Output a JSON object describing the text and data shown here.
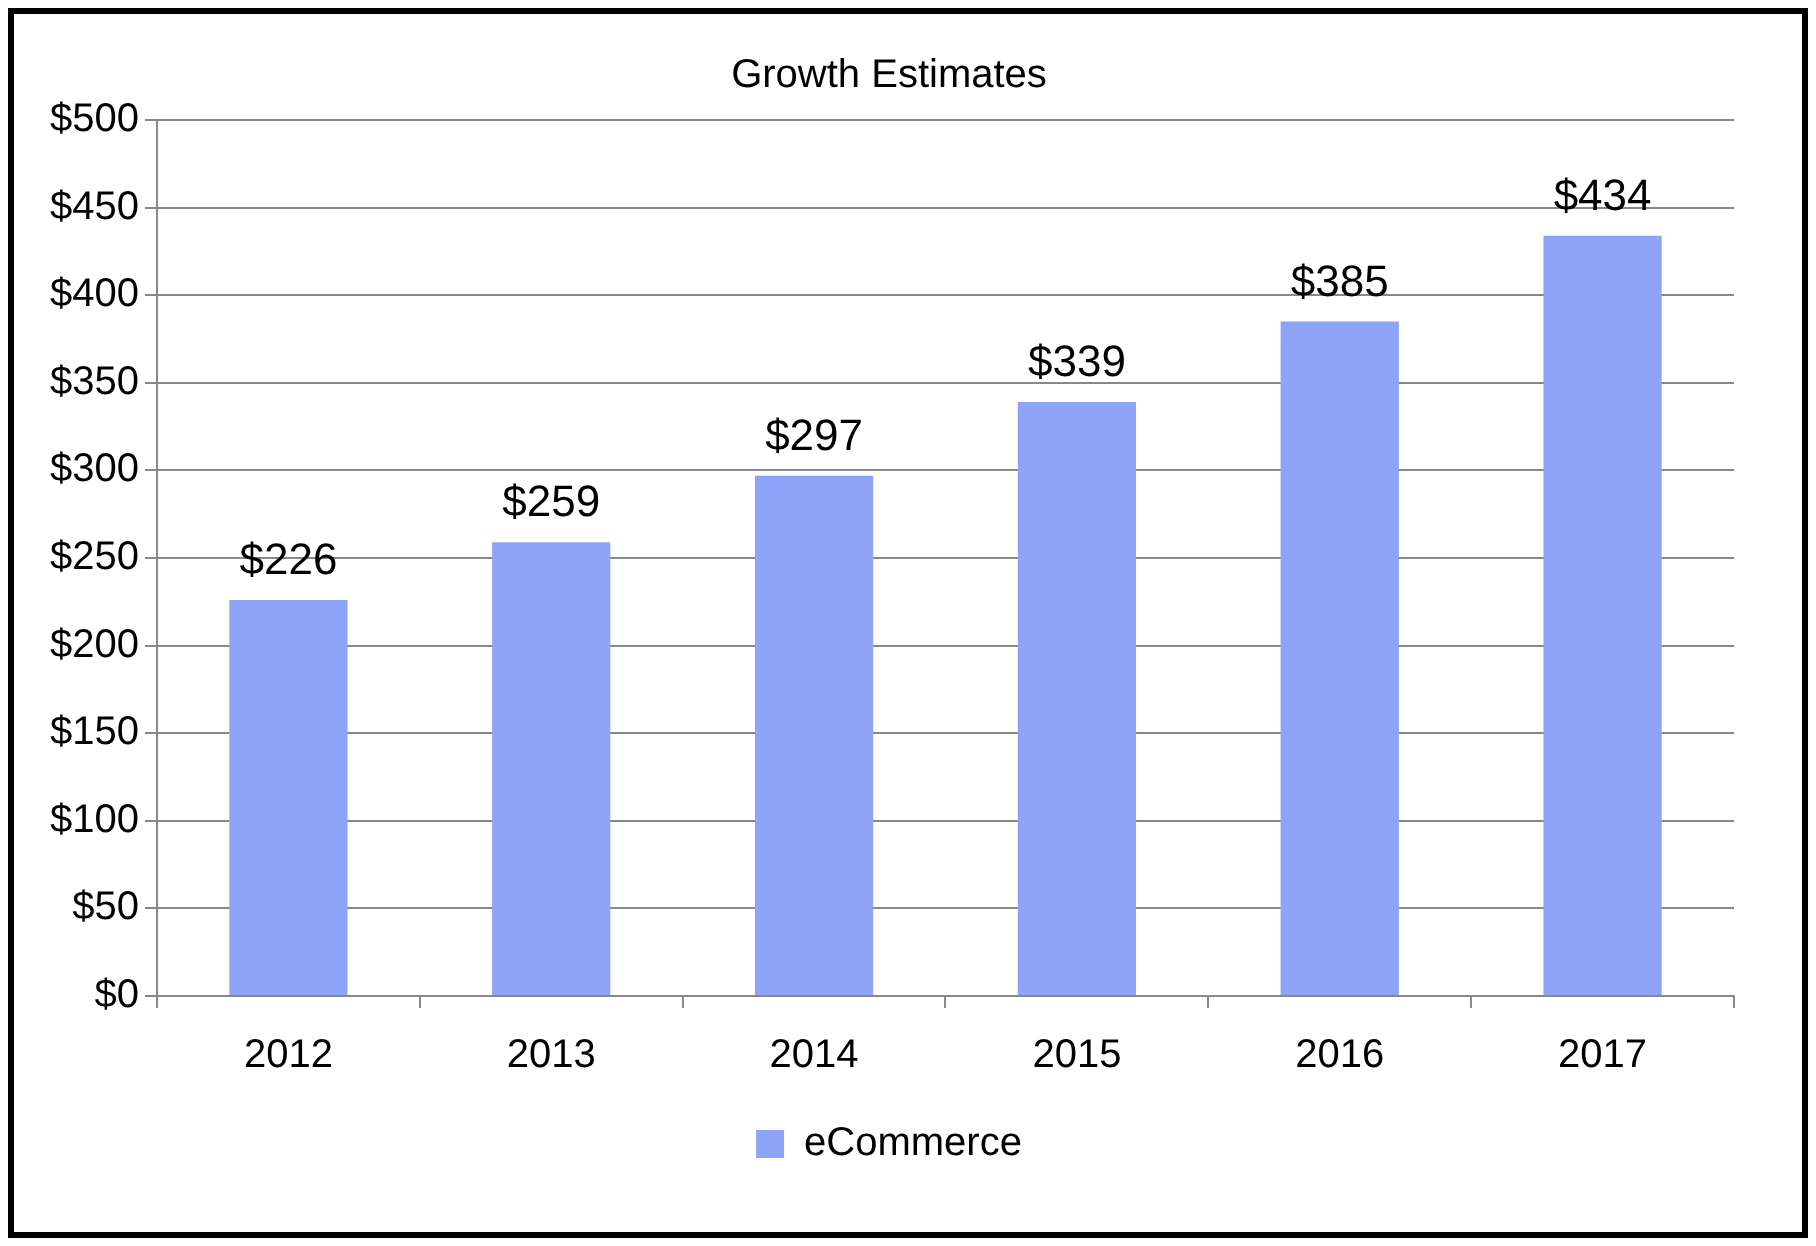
{
  "chart_data": {
    "type": "bar",
    "title": "Growth Estimates",
    "categories": [
      "2012",
      "2013",
      "2014",
      "2015",
      "2016",
      "2017"
    ],
    "series": [
      {
        "name": "eCommerce",
        "color": "#8ea4f8",
        "values": [
          226,
          259,
          297,
          339,
          385,
          434
        ],
        "value_labels": [
          "$226",
          "$259",
          "$297",
          "$339",
          "$385",
          "$434"
        ]
      }
    ],
    "ylim": [
      0,
      500
    ],
    "yticks": [
      {
        "value": 0,
        "label": "$0"
      },
      {
        "value": 50,
        "label": "$50"
      },
      {
        "value": 100,
        "label": "$100"
      },
      {
        "value": 150,
        "label": "$150"
      },
      {
        "value": 200,
        "label": "$200"
      },
      {
        "value": 250,
        "label": "$250"
      },
      {
        "value": 300,
        "label": "$300"
      },
      {
        "value": 350,
        "label": "$350"
      },
      {
        "value": 400,
        "label": "$400"
      },
      {
        "value": 450,
        "label": "$450"
      },
      {
        "value": 500,
        "label": "$500"
      }
    ],
    "grid": "y",
    "legend": "bottom"
  }
}
